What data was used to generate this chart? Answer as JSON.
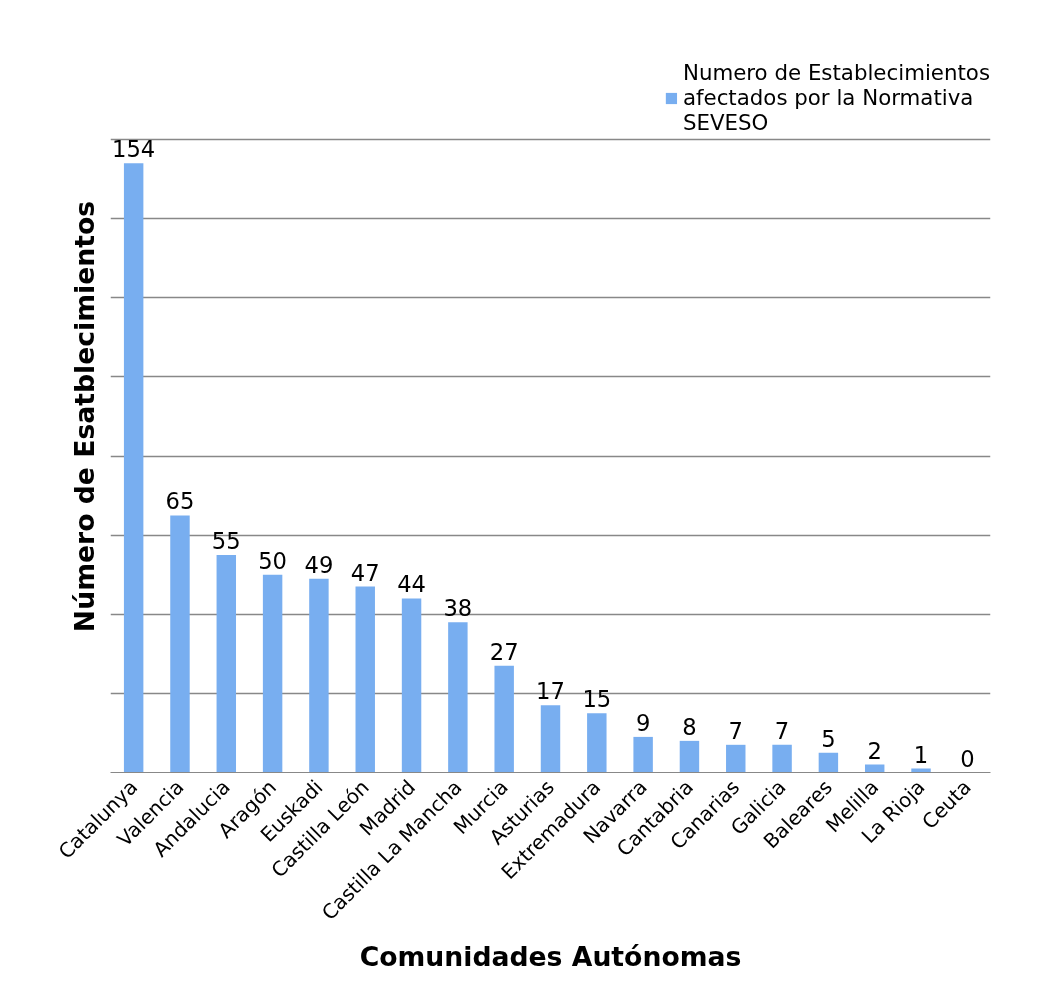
{
  "chart_data": {
    "type": "bar",
    "xlabel": "Comunidades Autónomas",
    "ylabel": "Número de Esatblecimientos",
    "categories": [
      "Catalunya",
      "Valencia",
      "Andalucia",
      "Aragón",
      "Euskadi",
      "Castilla León",
      "Madrid",
      "Castilla La Mancha",
      "Murcia",
      "Asturias",
      "Extremadura",
      "Navarra",
      "Cantabria",
      "Canarias",
      "Galicia",
      "Baleares",
      "Melilla",
      "La Rioja",
      "Ceuta"
    ],
    "series": [
      {
        "name": "Numero de Establecimientos afectados por la Normativa SEVESO",
        "color": "#78aef0",
        "values": [
          154,
          65,
          55,
          50,
          49,
          47,
          44,
          38,
          27,
          17,
          15,
          9,
          8,
          7,
          7,
          5,
          2,
          1,
          0
        ]
      }
    ],
    "ylim": [
      0,
      180
    ],
    "yticks": [
      {
        "value": 0,
        "label": null
      },
      {
        "value": 20,
        "label": null
      },
      {
        "value": 40,
        "label": null
      },
      {
        "value": 60,
        "label": null
      },
      {
        "value": 80,
        "label": null
      },
      {
        "value": 100,
        "label": null
      },
      {
        "value": 120,
        "label": null
      },
      {
        "value": 140,
        "label": null
      },
      {
        "value": 160,
        "label": null
      }
    ],
    "tick_labels": "x",
    "grid": "y",
    "legend": "top right",
    "data_labels": true
  }
}
